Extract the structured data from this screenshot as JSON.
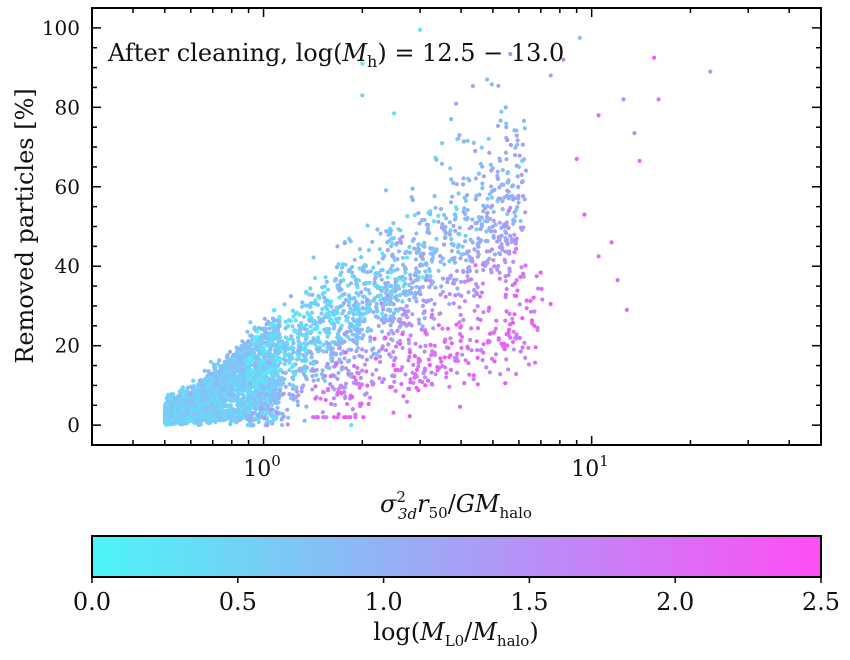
{
  "chart_data": {
    "type": "scatter",
    "annotation": "After cleaning,  log(M_h) = 12.5 − 13.0",
    "xlabel": "σ²_3d r₅₀/G M_halo",
    "ylabel": "Removed particles [%]",
    "x_scale": "log",
    "xlim": [
      0.3,
      50
    ],
    "ylim": [
      -5,
      105
    ],
    "x_tick_labels": [
      "10⁰",
      "10¹"
    ],
    "y_ticks": [
      0,
      20,
      40,
      60,
      80,
      100
    ],
    "y_tick_labels": [
      "0",
      "20",
      "40",
      "60",
      "80",
      "100"
    ],
    "grid": false,
    "colorbar": {
      "label": "log(M_L0/M_halo)",
      "range": [
        0,
        2.5
      ],
      "ticks": [
        0,
        0.5,
        1,
        1.5,
        2,
        2.5
      ],
      "tick_labels": [
        "0.0",
        "0.5",
        "1.0",
        "1.5",
        "2.0",
        "2.5"
      ],
      "cmap": [
        "#4cf5f7",
        "#ff4df5"
      ]
    },
    "highlighted_points": [
      {
        "x": 3.0,
        "y": 99.5,
        "c": 0.2
      },
      {
        "x": 9.2,
        "y": 97.5,
        "c": 0.9
      },
      {
        "x": 8.2,
        "y": 92,
        "c": 1.6
      },
      {
        "x": 15.5,
        "y": 92.5,
        "c": 2.3
      },
      {
        "x": 23.0,
        "y": 89,
        "c": 1.2
      },
      {
        "x": 2.0,
        "y": 91,
        "c": 0.1
      },
      {
        "x": 2.0,
        "y": 83,
        "c": 0.5
      },
      {
        "x": 4.8,
        "y": 87,
        "c": 0.8
      },
      {
        "x": 7.5,
        "y": 88,
        "c": 1.3
      },
      {
        "x": 12.5,
        "y": 82,
        "c": 1.4
      },
      {
        "x": 10.5,
        "y": 78,
        "c": 2.1
      },
      {
        "x": 13.5,
        "y": 73.5,
        "c": 1.5
      },
      {
        "x": 16.0,
        "y": 82,
        "c": 1.8
      },
      {
        "x": 6.0,
        "y": 65,
        "c": 0.7
      },
      {
        "x": 9.0,
        "y": 67,
        "c": 2.2
      },
      {
        "x": 14.0,
        "y": 66.5,
        "c": 2.0
      },
      {
        "x": 9.5,
        "y": 53,
        "c": 2.4
      },
      {
        "x": 11.5,
        "y": 46,
        "c": 2.2
      },
      {
        "x": 10.5,
        "y": 42.5,
        "c": 2.0
      },
      {
        "x": 12.0,
        "y": 36.5,
        "c": 1.9
      },
      {
        "x": 12.8,
        "y": 29,
        "c": 2.1
      },
      {
        "x": 7.5,
        "y": 30.5,
        "c": 2.3
      },
      {
        "x": 6.8,
        "y": 37.5,
        "c": 2.0
      },
      {
        "x": 4.9,
        "y": 23,
        "c": 2.2
      },
      {
        "x": 1.85,
        "y": 0,
        "c": 0.3
      },
      {
        "x": 2.5,
        "y": 78.5,
        "c": 0.3
      },
      {
        "x": 3.5,
        "y": 71,
        "c": 0.6
      },
      {
        "x": 4.2,
        "y": 62,
        "c": 0.7
      }
    ]
  }
}
